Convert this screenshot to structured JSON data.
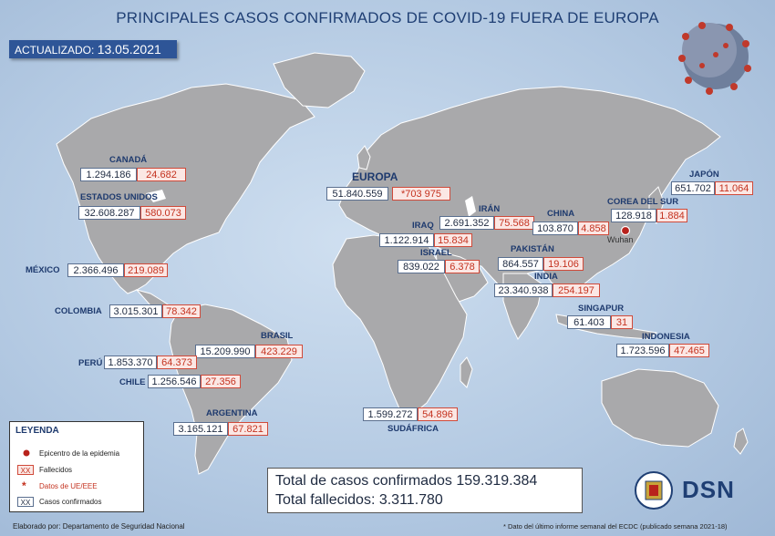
{
  "header": {
    "title": "PRINCIPALES CASOS CONFIRMADOS DE COVID-19 FUERA DE EUROPA",
    "updated_label": "ACTUALIZADO:",
    "updated_date": "13.05.2021"
  },
  "regions": {
    "canada": {
      "name": "CANADÁ",
      "cases": "1.294.186",
      "deaths": "24.682"
    },
    "usa": {
      "name": "ESTADOS UNIDOS",
      "cases": "32.608.287",
      "deaths": "580.073"
    },
    "mexico": {
      "name": "MÉXICO",
      "cases": "2.366.496",
      "deaths": "219.089"
    },
    "colombia": {
      "name": "COLOMBIA",
      "cases": "3.015.301",
      "deaths": "78.342"
    },
    "brasil": {
      "name": "BRASIL",
      "cases": "15.209.990",
      "deaths": "423.229"
    },
    "peru": {
      "name": "PERÚ",
      "cases": "1.853.370",
      "deaths": "64.373"
    },
    "chile": {
      "name": "CHILE",
      "cases": "1.256.546",
      "deaths": "27.356"
    },
    "argentina": {
      "name": "ARGENTINA",
      "cases": "3.165.121",
      "deaths": "67.821"
    },
    "europa": {
      "name": "EUROPA",
      "cases": "51.840.559",
      "deaths": "*703 975"
    },
    "iran": {
      "name": "IRÁN",
      "cases": "2.691.352",
      "deaths": "75.568"
    },
    "iraq": {
      "name": "IRAQ",
      "cases": "1.122.914",
      "deaths": "15.834"
    },
    "israel": {
      "name": "ISRAEL",
      "cases": "839.022",
      "deaths": "6.378"
    },
    "pakistan": {
      "name": "PAKISTÁN",
      "cases": "864.557",
      "deaths": "19.106"
    },
    "india": {
      "name": "INDIA",
      "cases": "23.340.938",
      "deaths": "254.197"
    },
    "china": {
      "name": "CHINA",
      "cases": "103.870",
      "deaths": "4.858"
    },
    "corea": {
      "name": "COREA DEL SUR",
      "cases": "128.918",
      "deaths": "1.884"
    },
    "japon": {
      "name": "JAPÓN",
      "cases": "651.702",
      "deaths": "11.064"
    },
    "singapur": {
      "name": "SINGAPUR",
      "cases": "61.403",
      "deaths": "31"
    },
    "indonesia": {
      "name": "INDONESIA",
      "cases": "1.723.596",
      "deaths": "47.465"
    },
    "sudafrica": {
      "name": "SUDÁFRICA",
      "cases": "1.599.272",
      "deaths": "54.896"
    }
  },
  "wuhan_label": "Wuhan",
  "legend": {
    "title": "LEYENDA",
    "epicenter": "Epicentro de la epidemia",
    "deaths_symbol": "XX",
    "deaths": "Fallecidos",
    "eu_symbol": "*",
    "eu_data": "Datos de UE/EEE",
    "cases_symbol": "XX",
    "cases": "Casos confirmados"
  },
  "totals": {
    "cases": "Total de casos confirmados 159.319.384",
    "deaths": "Total fallecidos: 3.311.780"
  },
  "footer": "Elaborado por: Departamento de Seguridad Nacional",
  "footnote": "* Dato del último informe semanal del ECDC (publicado semana 2021-18)",
  "logo_text": "DSN",
  "colors": {
    "cases_border": "#5a6f8f",
    "deaths_text": "#c4321f",
    "deaths_bg": "#fbe7e4",
    "title": "#1f3f74",
    "land": "#a7a7a9"
  }
}
